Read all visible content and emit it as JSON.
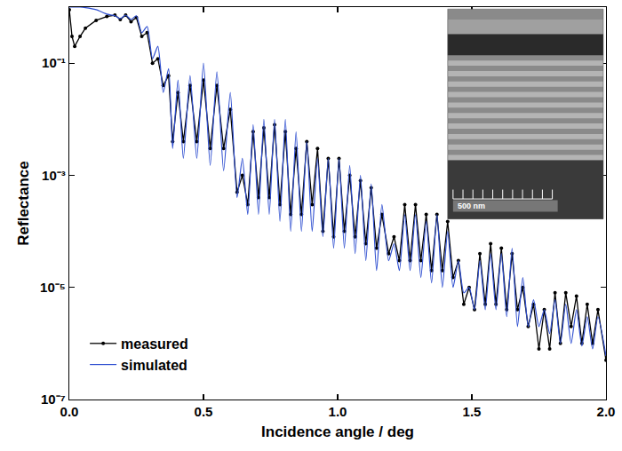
{
  "chart_data": {
    "type": "line",
    "x_label": "Incidence angle / deg",
    "y_label": "Reflectance",
    "log": "y",
    "grid": false,
    "legend": "lower left",
    "annotations": [
      {
        "text": "500 nm"
      }
    ],
    "xlim": [
      0,
      2
    ],
    "xticks": [
      {
        "value": 0,
        "label": "0.0"
      },
      0.5,
      {
        "value": 1,
        "label": "1.0"
      },
      1.5,
      {
        "value": 2,
        "label": "2.0"
      }
    ],
    "ylim": [
      1e-07,
      1
    ],
    "yticks": [
      {
        "value": 1e-07,
        "label": "10⁻⁷"
      },
      {
        "value": 1e-05,
        "label": "10⁻⁵"
      },
      {
        "value": 0.001,
        "label": "10⁻³"
      },
      {
        "value": 0.1,
        "label": "10⁻¹"
      }
    ],
    "x": [
      0,
      0.01,
      0.02,
      0.04,
      0.06,
      0.1,
      0.14,
      0.17,
      0.19,
      0.21,
      0.23,
      0.25,
      0.27,
      0.29,
      0.31,
      0.33,
      0.35,
      0.37,
      0.385,
      0.405,
      0.425,
      0.45,
      0.475,
      0.5,
      0.525,
      0.55,
      0.575,
      0.6,
      0.625,
      0.645,
      0.665,
      0.685,
      0.705,
      0.725,
      0.745,
      0.765,
      0.785,
      0.805,
      0.825,
      0.845,
      0.865,
      0.885,
      0.905,
      0.925,
      0.945,
      0.965,
      0.985,
      1.005,
      1.025,
      1.045,
      1.065,
      1.085,
      1.105,
      1.125,
      1.145,
      1.165,
      1.19,
      1.21,
      1.23,
      1.25,
      1.27,
      1.29,
      1.31,
      1.33,
      1.35,
      1.37,
      1.39,
      1.41,
      1.43,
      1.45,
      1.47,
      1.49,
      1.51,
      1.53,
      1.55,
      1.57,
      1.59,
      1.61,
      1.63,
      1.65,
      1.67,
      1.69,
      1.71,
      1.73,
      1.75,
      1.77,
      1.79,
      1.81,
      1.83,
      1.85,
      1.87,
      1.89,
      1.91,
      1.93,
      1.95,
      1.97,
      2.0
    ],
    "series": [
      {
        "name": "measured",
        "color": "#000000",
        "marker": "circle",
        "line_style": "solid",
        "values": [
          0.9,
          0.3,
          0.2,
          0.3,
          0.42,
          0.58,
          0.68,
          0.72,
          0.6,
          0.72,
          0.55,
          0.65,
          0.3,
          0.35,
          0.1,
          0.12,
          0.04,
          0.06,
          0.004,
          0.03,
          0.004,
          0.04,
          0.004,
          0.05,
          0.003,
          0.04,
          0.003,
          0.015,
          0.0005,
          0.001,
          0.0003,
          0.006,
          0.0004,
          0.007,
          0.0004,
          0.008,
          0.0003,
          0.006,
          0.0002,
          0.003,
          0.0002,
          0.004,
          0.0003,
          0.003,
          0.0001,
          0.002,
          8e-05,
          0.002,
          0.0001,
          0.001,
          8e-05,
          0.0008,
          6e-05,
          0.0006,
          5e-05,
          0.0002,
          4e-05,
          8e-05,
          3e-05,
          0.0003,
          3e-05,
          0.0003,
          3e-05,
          0.0002,
          2e-05,
          0.0002,
          2e-05,
          0.00015,
          1.5e-05,
          3e-05,
          5e-06,
          1e-05,
          4e-06,
          4e-05,
          5e-06,
          6e-05,
          5e-06,
          5e-05,
          4e-06,
          4e-05,
          4e-06,
          1e-05,
          2e-06,
          5e-06,
          8e-07,
          4e-06,
          8e-07,
          8e-06,
          1e-06,
          8e-06,
          2e-06,
          7e-06,
          1e-06,
          5e-06,
          1e-06,
          4e-06,
          5e-07
        ]
      },
      {
        "name": "simulated",
        "color": "#2f4fd0",
        "marker": "none",
        "line_style": "solid",
        "values": [
          1.0,
          1.0,
          1.0,
          1.0,
          0.98,
          0.9,
          0.75,
          0.7,
          0.62,
          0.72,
          0.6,
          0.7,
          0.35,
          0.45,
          0.12,
          0.2,
          0.03,
          0.08,
          0.003,
          0.05,
          0.002,
          0.06,
          0.002,
          0.1,
          0.0015,
          0.07,
          0.0012,
          0.03,
          0.0004,
          0.002,
          0.0002,
          0.008,
          0.0002,
          0.01,
          0.0002,
          0.01,
          0.00015,
          0.01,
          0.0001,
          0.006,
          0.0001,
          0.004,
          0.0001,
          0.002,
          8e-05,
          0.002,
          5e-05,
          0.002,
          5e-05,
          0.0015,
          4e-05,
          0.001,
          3e-05,
          0.0007,
          2e-05,
          0.0003,
          3e-05,
          6e-05,
          2e-05,
          0.0002,
          2e-05,
          0.0002,
          1.5e-05,
          0.00015,
          1.2e-05,
          0.0002,
          1e-05,
          0.0001,
          1e-05,
          3e-05,
          8e-06,
          1e-05,
          4e-06,
          3e-05,
          4e-06,
          4e-05,
          4e-06,
          4e-05,
          3e-06,
          5e-05,
          2e-06,
          1.5e-05,
          2e-06,
          6e-06,
          2e-06,
          4e-06,
          1.5e-06,
          6e-06,
          1e-06,
          5e-06,
          1e-06,
          4e-06,
          9e-07,
          3e-06,
          8e-07,
          3e-06,
          6e-07
        ]
      }
    ]
  }
}
